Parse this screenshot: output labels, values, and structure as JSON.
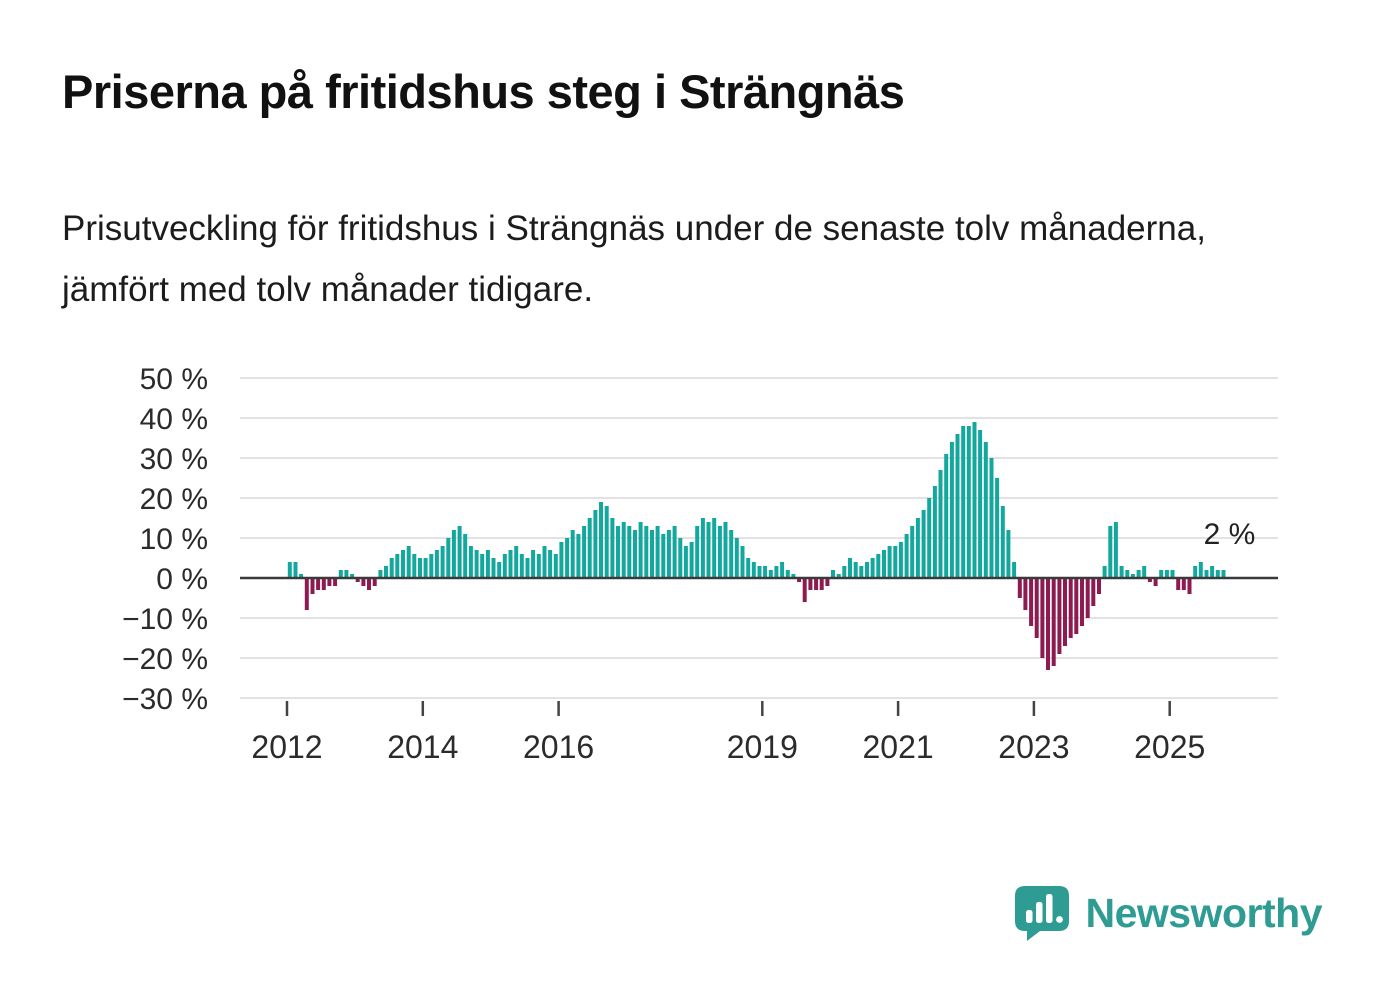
{
  "header": {
    "title": "Priserna på fritidshus steg i Strängnäs",
    "subtitle": "Prisutveckling för fritidshus i Strängnäs under de senaste tolv månaderna, jämfört med tolv månader tidigare."
  },
  "chart_data": {
    "type": "bar",
    "title": "Prisutveckling för fritidshus i Strängnäs",
    "unit": "%",
    "x_start": "2012-01",
    "x_interval": "month",
    "ylim": [
      -30,
      50
    ],
    "yticks": [
      50,
      40,
      30,
      20,
      10,
      0,
      -10,
      -20,
      -30
    ],
    "ytick_labels": [
      "50 %",
      "40 %",
      "30 %",
      "20 %",
      "10 %",
      "0 %",
      "−10 %",
      "−20 %",
      "−30 %"
    ],
    "xtick_years": [
      2012,
      2014,
      2016,
      2019,
      2021,
      2023,
      2025
    ],
    "grid": true,
    "legend": "none",
    "annotation": {
      "text": "2 %",
      "value": 2,
      "position": "last-bar"
    },
    "colors": {
      "positive_bar": "#13a89e",
      "negative_bar": "#8e1a52",
      "gridline": "#d8d8d8",
      "baseline": "#3a3a3a",
      "axis_text": "#2b2b2b",
      "annotation_text": "#222222"
    },
    "series": [
      {
        "name": "prisutveckling_12m",
        "values": [
          4,
          4,
          1,
          -8,
          -4,
          -3,
          -3,
          -2,
          -2,
          2,
          2,
          1,
          -1,
          -2,
          -3,
          -2,
          2,
          3,
          5,
          6,
          7,
          8,
          6,
          5,
          5,
          6,
          7,
          8,
          10,
          12,
          13,
          11,
          8,
          7,
          6,
          7,
          5,
          4,
          6,
          7,
          8,
          6,
          5,
          7,
          6,
          8,
          7,
          6,
          9,
          10,
          12,
          11,
          13,
          15,
          17,
          19,
          18,
          15,
          13,
          14,
          13,
          12,
          14,
          13,
          12,
          13,
          11,
          12,
          13,
          10,
          8,
          9,
          13,
          15,
          14,
          15,
          13,
          14,
          12,
          10,
          8,
          5,
          4,
          3,
          3,
          2,
          3,
          4,
          2,
          1,
          -1,
          -6,
          -3,
          -3,
          -3,
          -2,
          2,
          1,
          3,
          5,
          4,
          3,
          4,
          5,
          6,
          7,
          8,
          8,
          9,
          11,
          13,
          15,
          17,
          20,
          23,
          27,
          31,
          34,
          36,
          38,
          38,
          39,
          37,
          34,
          30,
          25,
          18,
          12,
          4,
          -5,
          -8,
          -12,
          -15,
          -20,
          -23,
          -22,
          -19,
          -17,
          -15,
          -14,
          -12,
          -10,
          -7,
          -4,
          3,
          13,
          14,
          3,
          2,
          1,
          2,
          3,
          -1,
          -2,
          2,
          2,
          2,
          -3,
          -3,
          -4,
          3,
          4,
          2,
          3,
          2,
          2
        ]
      }
    ]
  },
  "branding": {
    "logo_text": "Newsworthy",
    "logo_color": "#2e9c92",
    "logo_icon": "bar-chart-speech-bubble-icon"
  }
}
